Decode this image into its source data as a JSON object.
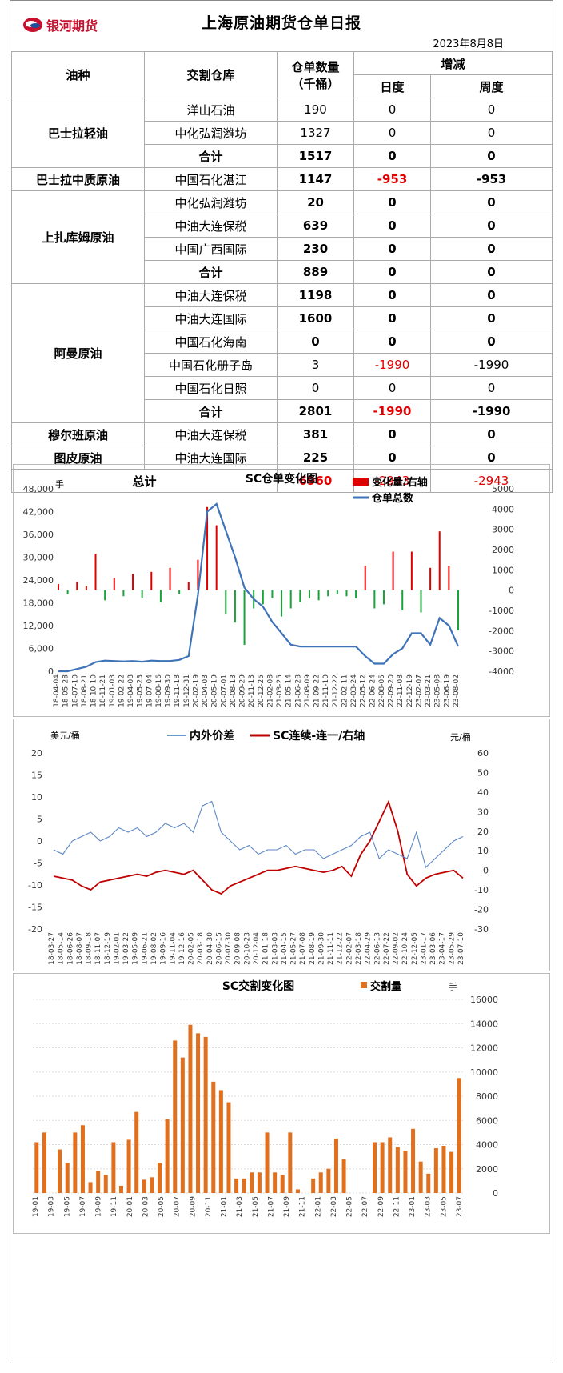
{
  "header": {
    "logo_text": "银河期货",
    "title": "上海原油期货仓单日报",
    "date": "2023年8月8日"
  },
  "table": {
    "headers": {
      "oil": "油种",
      "warehouse": "交割仓库",
      "qty": "仓单数量",
      "qty_unit": "（千桶）",
      "change": "增减",
      "daily": "日度",
      "weekly": "周度"
    },
    "rows": [
      {
        "warehouse": "洋山石油",
        "qty": "190",
        "daily": "0",
        "weekly": "0"
      },
      {
        "warehouse": "中化弘润潍坊",
        "qty": "1327",
        "daily": "0",
        "weekly": "0"
      },
      {
        "warehouse": "合计",
        "qty": "1517",
        "daily": "0",
        "weekly": "0"
      },
      {
        "warehouse": "中国石化湛江",
        "qty": "1147",
        "daily": "-953",
        "weekly": "-953"
      },
      {
        "warehouse": "中化弘润潍坊",
        "qty": "20",
        "daily": "0",
        "weekly": "0"
      },
      {
        "warehouse": "中油大连保税",
        "qty": "639",
        "daily": "0",
        "weekly": "0"
      },
      {
        "warehouse": "中国广西国际",
        "qty": "230",
        "daily": "0",
        "weekly": "0"
      },
      {
        "warehouse": "合计",
        "qty": "889",
        "daily": "0",
        "weekly": "0"
      },
      {
        "warehouse": "中油大连保税",
        "qty": "1198",
        "daily": "0",
        "weekly": "0"
      },
      {
        "warehouse": "中油大连国际",
        "qty": "1600",
        "daily": "0",
        "weekly": "0"
      },
      {
        "warehouse": "中国石化海南",
        "qty": "0",
        "daily": "0",
        "weekly": "0"
      },
      {
        "warehouse": "中国石化册子岛",
        "qty": "3",
        "daily": "-1990",
        "weekly": "-1990"
      },
      {
        "warehouse": "中国石化日照",
        "qty": "0",
        "daily": "0",
        "weekly": "0"
      },
      {
        "warehouse": "合计",
        "qty": "2801",
        "daily": "-1990",
        "weekly": "-1990"
      },
      {
        "warehouse": "中油大连保税",
        "qty": "381",
        "daily": "0",
        "weekly": "0"
      },
      {
        "warehouse": "中油大连国际",
        "qty": "225",
        "daily": "0",
        "weekly": "0"
      }
    ],
    "oils": [
      "巴士拉轻油",
      "巴士拉中质原油",
      "上扎库姆原油",
      "阿曼原油",
      "穆尔班原油",
      "图皮原油"
    ],
    "total": {
      "label": "总计",
      "qty": "6960",
      "daily": "-2943",
      "weekly": "-2943"
    }
  },
  "chart_data": [
    {
      "type": "bar+line",
      "title": "SC仓单变化图",
      "y_left_label": "手",
      "y_left_ticks": [
        "0",
        "6,000",
        "12,000",
        "18,000",
        "24,000",
        "30,000",
        "36,000",
        "42,000",
        "48,000"
      ],
      "y_left_lim": [
        0,
        48000
      ],
      "y_right_ticks": [
        "-4000",
        "-3000",
        "-2000",
        "-1000",
        "0",
        "1000",
        "2000",
        "3000",
        "4000",
        "5000"
      ],
      "y_right_lim": [
        -4000,
        5000
      ],
      "x_ticks": [
        "18-04-04",
        "18-05-28",
        "18-07-10",
        "18-08-21",
        "18-10-10",
        "18-11-21",
        "19-01-03",
        "19-02-22",
        "19-04-08",
        "19-05-23",
        "19-07-04",
        "19-08-16",
        "19-09-30",
        "19-11-18",
        "19-12-31",
        "20-02-19",
        "20-04-03",
        "20-05-19",
        "20-07-01",
        "20-08-13",
        "20-09-29",
        "20-11-13",
        "20-12-25",
        "21-02-08",
        "21-03-25",
        "21-05-14",
        "21-06-28",
        "21-08-09",
        "21-09-22",
        "21-11-10",
        "21-12-22",
        "22-02-11",
        "22-03-24",
        "22-05-12",
        "22-06-24",
        "22-08-05",
        "22-09-20",
        "22-11-08",
        "22-12-19",
        "23-02-07",
        "23-03-21",
        "23-05-08",
        "23-06-19",
        "23-08-02"
      ],
      "legend": [
        "变化量/右轴",
        "仓单总数"
      ],
      "series": [
        {
          "name": "仓单总数",
          "axis": "left",
          "values": [
            0,
            0,
            600,
            1200,
            2400,
            2800,
            2700,
            2600,
            2700,
            2500,
            2800,
            2700,
            2700,
            3000,
            4000,
            20000,
            42000,
            44000,
            37000,
            30000,
            22000,
            19000,
            17000,
            13000,
            10000,
            7000,
            6500,
            6500,
            6500,
            6500,
            6500,
            6500,
            6500,
            4000,
            2000,
            2000,
            4500,
            6000,
            10000,
            10000,
            7000,
            14000,
            12000,
            6500
          ]
        },
        {
          "name": "变化量/右轴",
          "axis": "right",
          "values": [
            300,
            -200,
            400,
            200,
            1800,
            -500,
            600,
            -300,
            800,
            -400,
            900,
            -600,
            1100,
            -200,
            400,
            1500,
            4100,
            3200,
            -1200,
            -1600,
            -2700,
            -900,
            -700,
            -400,
            -1300,
            -900,
            -600,
            -400,
            -500,
            -300,
            -200,
            -300,
            -400,
            1200,
            -900,
            -700,
            1900,
            -1000,
            1900,
            -1100,
            1100,
            2900,
            1200,
            -1990
          ]
        }
      ]
    },
    {
      "type": "line",
      "y_left_label": "美元/桶",
      "y_right_label": "元/桶",
      "legend": [
        "内外价差",
        "SC连续-连一/右轴"
      ],
      "y_left_ticks": [
        "-20",
        "-15",
        "-10",
        "-5",
        "0",
        "5",
        "10",
        "15",
        "20"
      ],
      "y_left_lim": [
        -20,
        20
      ],
      "y_right_ticks": [
        "-30",
        "-20",
        "-10",
        "0",
        "10",
        "20",
        "30",
        "40",
        "50",
        "60"
      ],
      "y_right_lim": [
        -30,
        60
      ],
      "x_ticks": [
        "18-03-27",
        "18-05-14",
        "18-06-26",
        "18-08-07",
        "18-09-18",
        "18-11-07",
        "18-12-19",
        "19-02-01",
        "19-03-22",
        "19-05-09",
        "19-06-21",
        "19-08-02",
        "19-09-16",
        "19-11-04",
        "19-12-16",
        "20-02-05",
        "20-03-18",
        "20-04-30",
        "20-06-15",
        "20-07-30",
        "20-09-08",
        "20-10-23",
        "20-12-04",
        "21-01-18",
        "21-03-03",
        "21-04-15",
        "21-05-27",
        "21-07-08",
        "21-08-19",
        "21-09-30",
        "21-11-11",
        "21-12-22",
        "22-02-07",
        "22-03-18",
        "22-04-29",
        "22-06-13",
        "22-07-22",
        "22-09-02",
        "22-10-24",
        "22-12-05",
        "23-01-17",
        "23-03-06",
        "23-04-17",
        "23-05-29",
        "23-07-10"
      ],
      "series": [
        {
          "name": "内外价差",
          "axis": "left",
          "values": [
            -2,
            -3,
            0,
            1,
            2,
            0,
            1,
            3,
            2,
            3,
            1,
            2,
            4,
            3,
            4,
            2,
            8,
            9,
            2,
            0,
            -2,
            -1,
            -3,
            -2,
            -2,
            -1,
            -3,
            -2,
            -2,
            -4,
            -3,
            -2,
            -1,
            1,
            2,
            -4,
            -2,
            -3,
            -4,
            2,
            -6,
            -4,
            -2,
            0,
            1
          ]
        },
        {
          "name": "SC连续-连一/右轴",
          "axis": "right",
          "values": [
            -3,
            -4,
            -5,
            -8,
            -10,
            -6,
            -5,
            -4,
            -3,
            -2,
            -3,
            -1,
            0,
            -1,
            -2,
            0,
            -5,
            -10,
            -12,
            -8,
            -6,
            -4,
            -2,
            0,
            0,
            1,
            2,
            1,
            0,
            -1,
            0,
            2,
            -3,
            8,
            15,
            25,
            35,
            20,
            -2,
            -8,
            -4,
            -2,
            -1,
            0,
            -4
          ]
        }
      ]
    },
    {
      "type": "bar",
      "title": "SC交割变化图",
      "y_right_label": "手",
      "y_lim": [
        0,
        16000
      ],
      "y_ticks": [
        "0",
        "2000",
        "4000",
        "6000",
        "8000",
        "10000",
        "12000",
        "14000",
        "16000"
      ],
      "legend": [
        "交割量"
      ],
      "x_ticks": [
        "19-01",
        "19-03",
        "19-05",
        "19-07",
        "19-09",
        "19-11",
        "20-01",
        "20-03",
        "20-05",
        "20-07",
        "20-09",
        "20-11",
        "21-01",
        "21-03",
        "21-05",
        "21-07",
        "21-09",
        "21-11",
        "22-01",
        "22-03",
        "22-05",
        "22-07",
        "22-09",
        "22-11",
        "23-01",
        "23-03",
        "23-05",
        "23-07"
      ],
      "series": [
        {
          "name": "交割量",
          "values": [
            4200,
            5000,
            0,
            3600,
            2500,
            5000,
            5600,
            900,
            1800,
            1500,
            4200,
            600,
            4400,
            6700,
            1100,
            1300,
            2500,
            6100,
            12600,
            11200,
            13900,
            13200,
            12900,
            9200,
            8500,
            7500,
            1200,
            1200,
            1700,
            1700,
            5000,
            1700,
            1500,
            5000,
            300,
            0,
            1200,
            1700,
            2000,
            4500,
            2800,
            0,
            0,
            0,
            4200,
            4200,
            4600,
            3800,
            3500,
            5300,
            2600,
            1600,
            3700,
            3900,
            3400,
            9500
          ]
        }
      ]
    }
  ]
}
